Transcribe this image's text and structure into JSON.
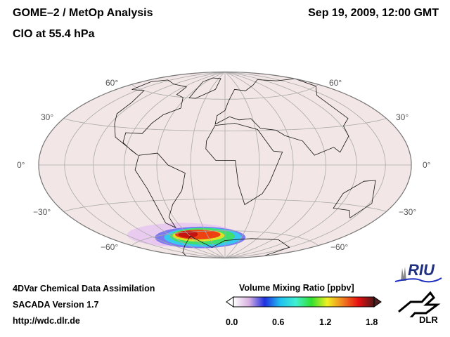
{
  "header": {
    "title": "GOME–2 / MetOp Analysis",
    "subtitle": "ClO at 55.4 hPa",
    "datetime": "Sep 19, 2009, 12:00 GMT"
  },
  "map": {
    "projection": "Hammer",
    "lat_labels_left": [
      "60°",
      "30°",
      "0°",
      "−30°",
      "−60°"
    ],
    "lat_labels_right": [
      "60°",
      "30°",
      "0°",
      "−30°",
      "−60°"
    ],
    "background_color": "#f2e6e6"
  },
  "footer": {
    "line1": "4DVar Chemical Data Assimilation",
    "line2": "SACADA Version 1.7",
    "line3": "http://wdc.dlr.de"
  },
  "colorbar": {
    "title": "Volume Mixing Ratio [ppbv]",
    "ticks": [
      "0.0",
      "0.6",
      "1.2",
      "1.8"
    ],
    "range": [
      0.0,
      1.8
    ],
    "colors": [
      "#ffffff",
      "#d8b0e0",
      "#2030e0",
      "#20c0f0",
      "#40f0d0",
      "#30e030",
      "#f0f020",
      "#f08020",
      "#e81010",
      "#501818"
    ]
  },
  "logos": {
    "riu": "RIU",
    "dlr": "DLR"
  }
}
